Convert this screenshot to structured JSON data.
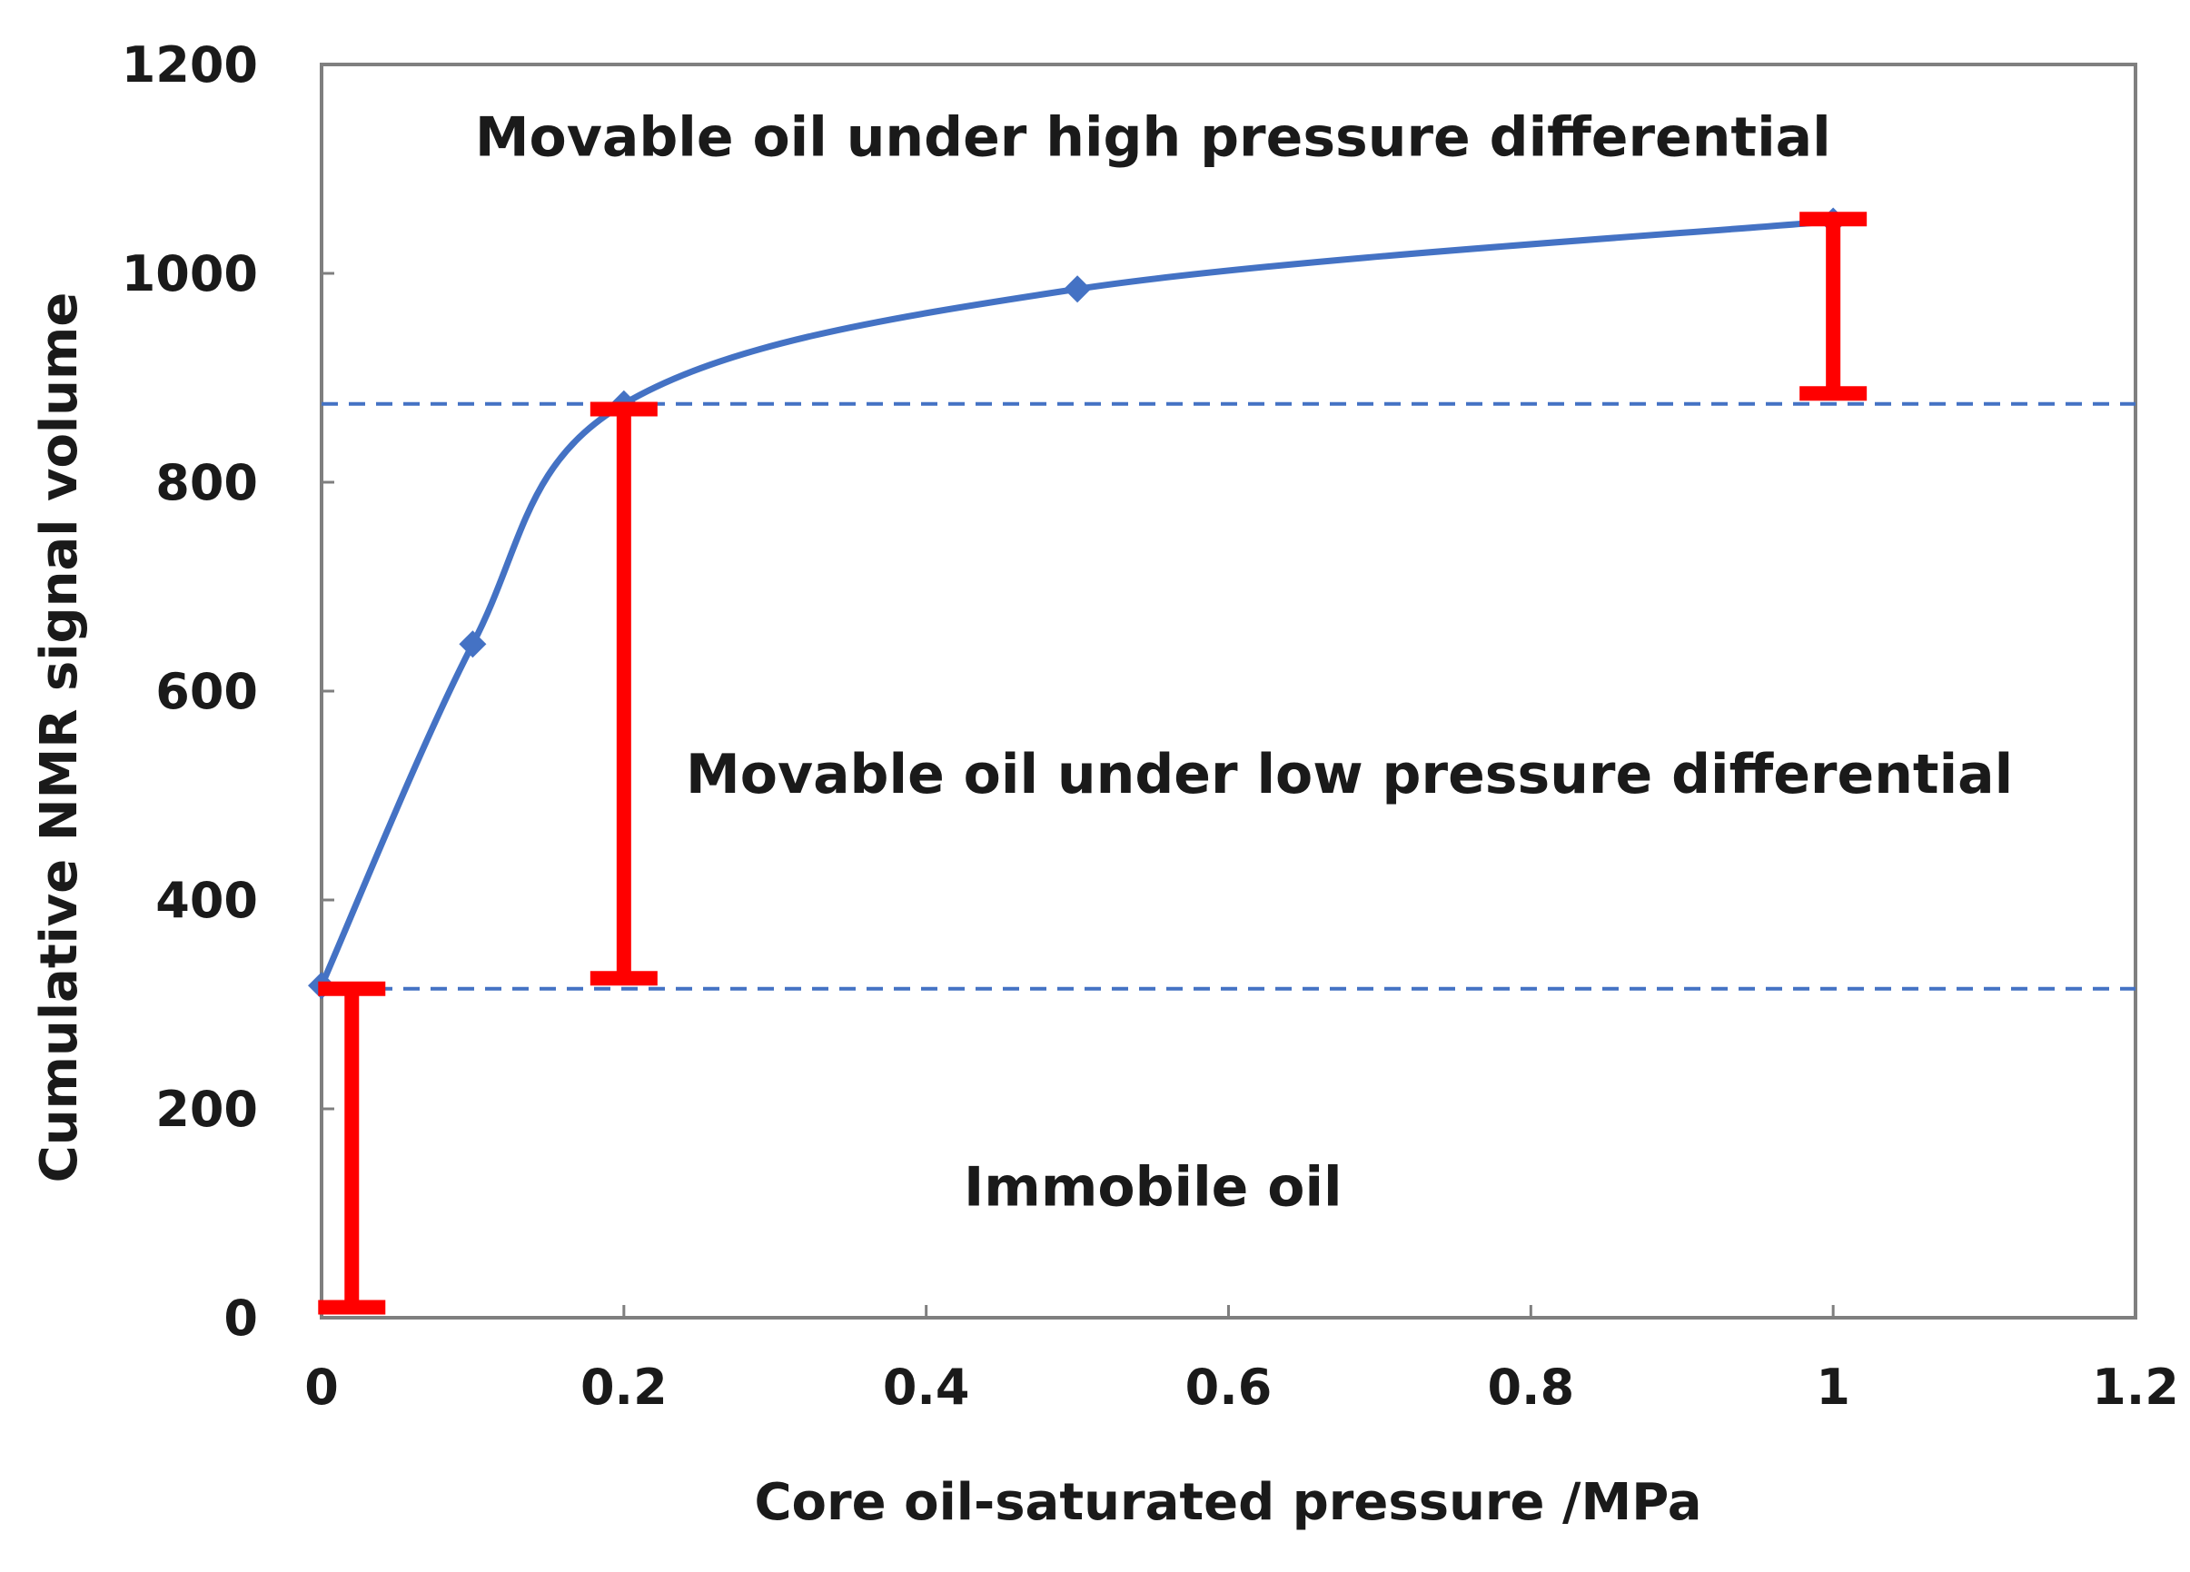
{
  "chart_data": {
    "type": "line",
    "xlabel": "Core oil-saturated pressure /MPa",
    "ylabel": "Cumulative NMR signal volume",
    "xlim": [
      0,
      1.2
    ],
    "ylim": [
      0,
      1200
    ],
    "x_ticks": [
      "0",
      "0.2",
      "0.4",
      "0.6",
      "0.8",
      "1",
      "1.2"
    ],
    "y_ticks": [
      "0",
      "200",
      "400",
      "600",
      "800",
      "1000",
      "1200"
    ],
    "x_tick_values": [
      0,
      0.2,
      0.4,
      0.6,
      0.8,
      1.0,
      1.2
    ],
    "y_tick_values": [
      0,
      200,
      400,
      600,
      800,
      1000,
      1200
    ],
    "grid": false,
    "series": [
      {
        "x": [
          0,
          0.1,
          0.2,
          0.5,
          1.0
        ],
        "y": [
          318,
          645,
          875,
          985,
          1050
        ],
        "color": "#4472C4",
        "marker": "diamond"
      }
    ],
    "reference_lines": [
      {
        "y": 875,
        "color": "#4472C4",
        "style": "dashed"
      },
      {
        "y": 315,
        "color": "#4472C4",
        "style": "dashed"
      }
    ],
    "range_markers": [
      {
        "x": 0.02,
        "y_low": 10,
        "y_high": 315,
        "color": "#FF0000"
      },
      {
        "x": 0.2,
        "y_low": 325,
        "y_high": 870,
        "color": "#FF0000"
      },
      {
        "x": 1.0,
        "y_low": 885,
        "y_high": 1052,
        "color": "#FF0000"
      }
    ],
    "annotations": [
      {
        "text": "Movable oil under high pressure differential",
        "x": 0.55,
        "y": 1130
      },
      {
        "text": "Movable oil under low pressure differential",
        "x": 0.68,
        "y": 520
      },
      {
        "text": "Immobile oil",
        "x": 0.55,
        "y": 125
      }
    ]
  }
}
